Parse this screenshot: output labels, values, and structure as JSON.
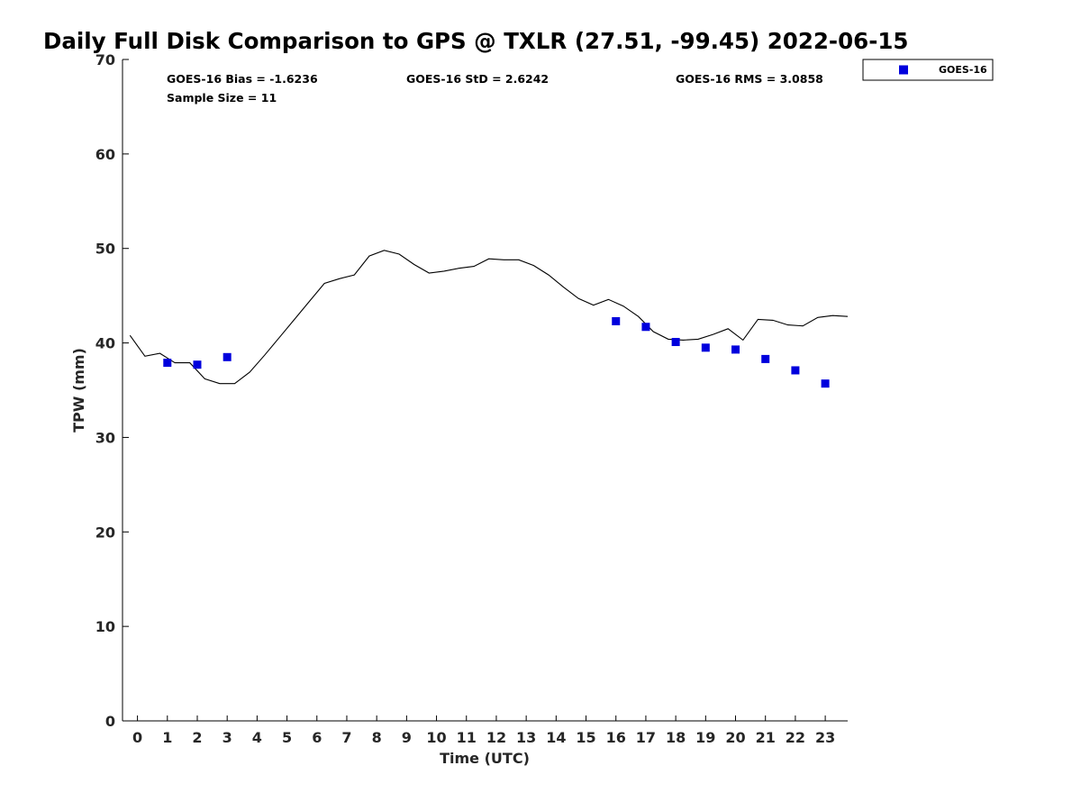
{
  "chart_data": {
    "type": "line",
    "title": "Daily Full Disk Comparison to GPS @ TXLR (27.51, -99.45) 2022-06-15",
    "xlabel": "Time (UTC)",
    "ylabel": "TPW (mm)",
    "xlim": [
      -0.5,
      23.75
    ],
    "ylim": [
      0,
      70
    ],
    "x_ticks": [
      0,
      1,
      2,
      3,
      4,
      5,
      6,
      7,
      8,
      9,
      10,
      11,
      12,
      13,
      14,
      15,
      16,
      17,
      18,
      19,
      20,
      21,
      22,
      23
    ],
    "y_ticks": [
      0,
      10,
      20,
      30,
      40,
      50,
      60,
      70
    ],
    "grid": false,
    "legend_position": "outside-top-right",
    "stats": {
      "bias": "GOES-16 Bias = -1.6236",
      "std": "GOES-16 StD = 2.6242",
      "rms": "GOES-16 RMS = 3.0858",
      "sample_size": "Sample Size = 11"
    },
    "series": [
      {
        "kind": "line",
        "color": "#000000",
        "x": [
          -0.25,
          0.25,
          0.75,
          1.0,
          1.25,
          1.75,
          2.25,
          2.75,
          3.25,
          3.75,
          4.25,
          4.75,
          5.25,
          5.75,
          6.25,
          6.75,
          7.25,
          7.75,
          8.25,
          8.75,
          9.25,
          9.75,
          10.25,
          10.75,
          11.25,
          11.75,
          12.25,
          12.75,
          13.25,
          13.75,
          14.25,
          14.75,
          15.25,
          15.75,
          16.25,
          16.75,
          17.25,
          17.75,
          18.25,
          18.75,
          19.25,
          19.75,
          20.25,
          20.75,
          21.25,
          21.75,
          22.25,
          22.75,
          23.25,
          23.75
        ],
        "y": [
          40.8,
          38.6,
          38.9,
          38.4,
          37.9,
          37.9,
          36.2,
          35.7,
          35.7,
          36.9,
          38.7,
          40.6,
          42.5,
          44.4,
          46.3,
          46.8,
          47.2,
          49.2,
          49.8,
          49.4,
          48.3,
          47.4,
          47.6,
          47.9,
          48.1,
          48.9,
          48.8,
          48.8,
          48.2,
          47.2,
          45.9,
          44.7,
          44.0,
          44.6,
          43.9,
          42.8,
          41.2,
          40.4,
          40.3,
          40.4,
          40.9,
          41.5,
          40.3,
          42.5,
          42.4,
          41.9,
          41.8,
          42.7,
          42.9,
          42.8
        ]
      },
      {
        "kind": "scatter",
        "name": "GOES-16",
        "color": "#0000dd",
        "x": [
          1,
          2,
          3,
          16,
          17,
          18,
          19,
          20,
          21,
          22,
          23
        ],
        "y": [
          37.9,
          37.7,
          38.5,
          42.3,
          41.7,
          40.1,
          39.5,
          39.3,
          38.3,
          37.1,
          35.7
        ]
      }
    ]
  }
}
